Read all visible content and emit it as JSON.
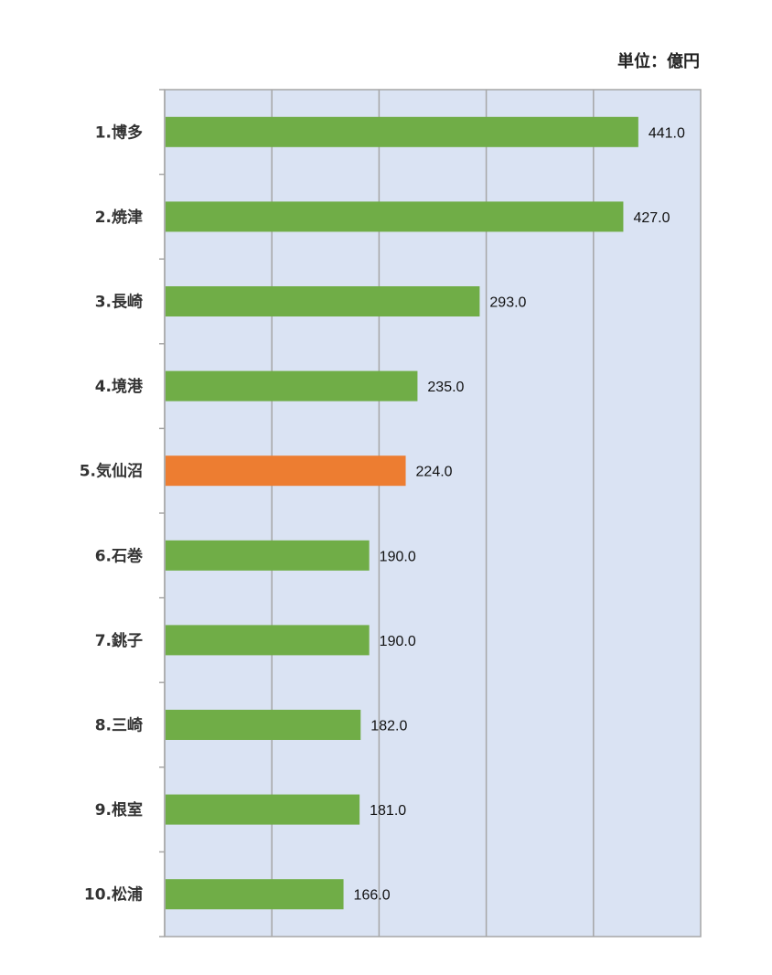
{
  "chart_data": {
    "type": "bar",
    "orientation": "horizontal",
    "unit_label": "単位：億円",
    "categories": [
      "1.博多",
      "2.焼津",
      "3.長崎",
      "4.境港",
      "5.気仙沼",
      "6.石巻",
      "7.銚子",
      "8.三崎",
      "9.根室",
      "10.松浦"
    ],
    "values": [
      441.0,
      427.0,
      293.0,
      235.0,
      224.0,
      190.0,
      190.0,
      182.0,
      181.0,
      166.0
    ],
    "value_labels": [
      "441.0",
      "427.0",
      "293.0",
      "235.0",
      "224.0",
      "190.0",
      "190.0",
      "182.0",
      "181.0",
      "166.0"
    ],
    "highlight_index": 4,
    "xlim": [
      0,
      500
    ],
    "grid": true,
    "colors": {
      "bar": "#70ad47",
      "highlight": "#ed7d31",
      "plot_background": "#dae3f3",
      "gridline": "#a6a6a6",
      "axis": "#a6a6a6"
    }
  }
}
